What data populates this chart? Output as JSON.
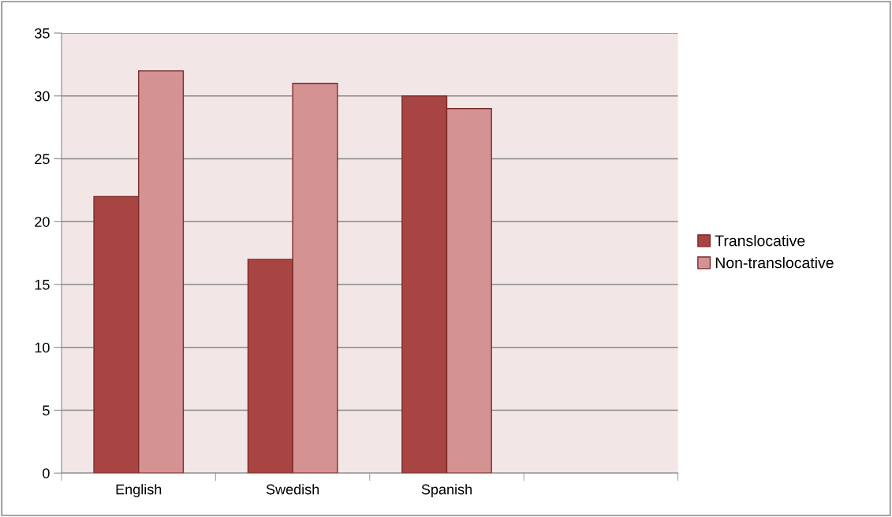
{
  "chart_data": {
    "type": "bar",
    "categories": [
      "English",
      "Swedish",
      "Spanish",
      null
    ],
    "series": [
      {
        "name": "Translocative",
        "color": "#a84442",
        "values": [
          22,
          17,
          30,
          null
        ]
      },
      {
        "name": "Non-translocative",
        "color": "#d49392",
        "values": [
          32,
          31,
          29,
          null
        ]
      }
    ],
    "ylim": [
      0,
      35
    ],
    "yticks": [
      0,
      5,
      10,
      15,
      20,
      25,
      30,
      35
    ],
    "grid": "y",
    "legend": "right"
  }
}
